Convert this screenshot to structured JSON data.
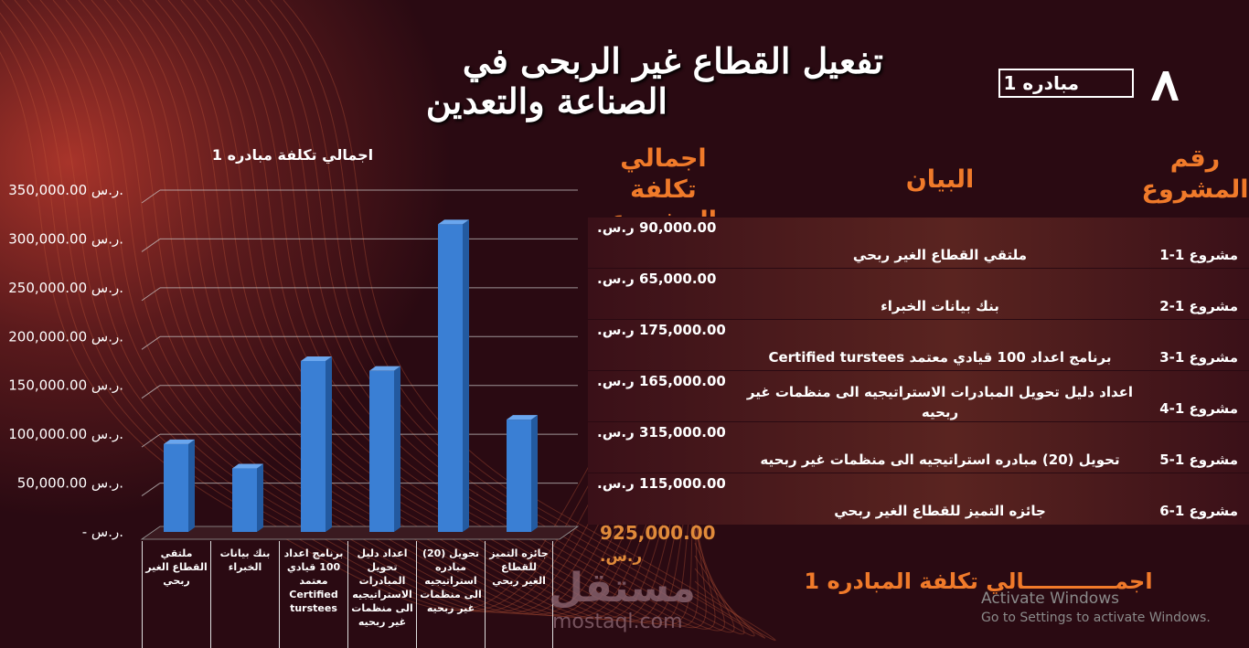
{
  "title": {
    "line1": "تفعيل القطاع غير الربحى في",
    "line2": "الصناعة والتعدين"
  },
  "badge": {
    "label": "مبادره 1",
    "logo_icon": "stylized-A-logo"
  },
  "chart_data": {
    "type": "bar",
    "title": "اجمالي تكلفة مبادره 1",
    "categories": [
      "ملتقي القطاع الغير ربحي",
      "بنك بيانات الخبراء",
      "برنامج اعداد 100 قيادي معتمد Certified turstees",
      "اعداد دليل تحويل المبادرات الاستراتيجيه الى منظمات غير ربحيه",
      "تحويل (20) مبادره استراتيجيه الى منظمات غير ربحيه",
      "جائزه التميز للقطاع الغير ربحي"
    ],
    "values": [
      90000,
      65000,
      175000,
      165000,
      315000,
      115000
    ],
    "ylim": [
      0,
      350000
    ],
    "yticks": [
      {
        "value": 350000,
        "label": "350,000.00 ر.س."
      },
      {
        "value": 300000,
        "label": "300,000.00 ر.س."
      },
      {
        "value": 250000,
        "label": "250,000.00 ر.س."
      },
      {
        "value": 200000,
        "label": "200,000.00 ر.س."
      },
      {
        "value": 150000,
        "label": "150,000.00 ر.س."
      },
      {
        "value": 100000,
        "label": "100,000.00 ر.س."
      },
      {
        "value": 50000,
        "label": "50,000.00 ر.س."
      },
      {
        "value": 0,
        "label": "-   ر.س."
      }
    ],
    "grid": true,
    "bar_color": "#3a7fd4"
  },
  "table": {
    "headers": {
      "number": "رقم المشروع",
      "description": "البيان",
      "cost": "اجمالي تكلفة المشروع"
    },
    "rows": [
      {
        "number": "مشروع 1-1",
        "description": "ملتقي القطاع الغير ربحي",
        "cost": "90,000.00 ر.س."
      },
      {
        "number": "مشروع 1-2",
        "description": "بنك بيانات الخبراء",
        "cost": "65,000.00 ر.س."
      },
      {
        "number": "مشروع 1-3",
        "description": "برنامج اعداد 100 قيادي معتمد Certified turstees",
        "cost": "175,000.00 ر.س."
      },
      {
        "number": "مشروع 1-4",
        "description": "اعداد دليل  تحويل المبادرات الاستراتيجيه الى منظمات غير ربحيه",
        "cost": "165,000.00 ر.س."
      },
      {
        "number": "مشروع 1-5",
        "description": "تحويل (20) مبادره استراتيجيه الى منظمات غير ربحيه",
        "cost": "315,000.00 ر.س."
      },
      {
        "number": "مشروع 1-6",
        "description": "جائزه التميز للقطاع الغير ربحي",
        "cost": "115,000.00 ر.س."
      }
    ],
    "total": {
      "value": "925,000.00",
      "currency": "ر.س.",
      "label": "اجمــــــــــــالي تكلفة المبادره 1"
    }
  },
  "watermark": {
    "arabic": "مستقل",
    "latin": "mostaql.com"
  },
  "activation": {
    "line1": "Activate Windows",
    "line2": "Go to Settings to activate Windows."
  },
  "colors": {
    "accent": "#f07a2a",
    "background": "#2a0a12",
    "bar": "#3a7fd4"
  }
}
